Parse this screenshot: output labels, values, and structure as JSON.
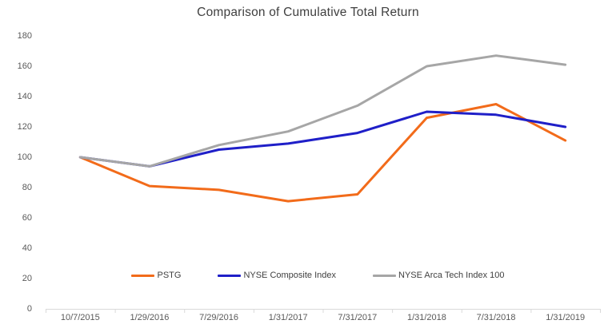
{
  "title": "Comparison of Cumulative Total Return",
  "colors": {
    "pstg": "#F26B1A",
    "nyse_composite": "#1F1FC8",
    "nyse_arca_tech": "#A6A6A6",
    "axis_line": "#D9D9D9",
    "tick_label": "#595959",
    "title_text": "#3F3F3F"
  },
  "chart_data": {
    "type": "line",
    "title": "Comparison of Cumulative Total Return",
    "categories": [
      "10/7/2015",
      "1/29/2016",
      "7/29/2016",
      "1/31/2017",
      "7/31/2017",
      "1/31/2018",
      "7/31/2018",
      "1/31/2019"
    ],
    "series": [
      {
        "name": "PSTG",
        "color": "#F26B1A",
        "values": [
          100,
          81,
          78.5,
          71,
          75.5,
          126,
          135,
          111
        ]
      },
      {
        "name": "NYSE Composite Index",
        "color": "#1F1FC8",
        "values": [
          100,
          94,
          105,
          109,
          116,
          130,
          128,
          120
        ]
      },
      {
        "name": "NYSE Arca Tech Index 100",
        "color": "#A6A6A6",
        "values": [
          100,
          94,
          108,
          117,
          134,
          160,
          167,
          161
        ]
      }
    ],
    "xlabel": "",
    "ylabel": "",
    "ylim": [
      0,
      180
    ],
    "yticks": [
      0,
      20,
      40,
      60,
      80,
      100,
      120,
      140,
      160,
      180
    ],
    "grid": false,
    "legend_position": "bottom-inside-plot"
  }
}
